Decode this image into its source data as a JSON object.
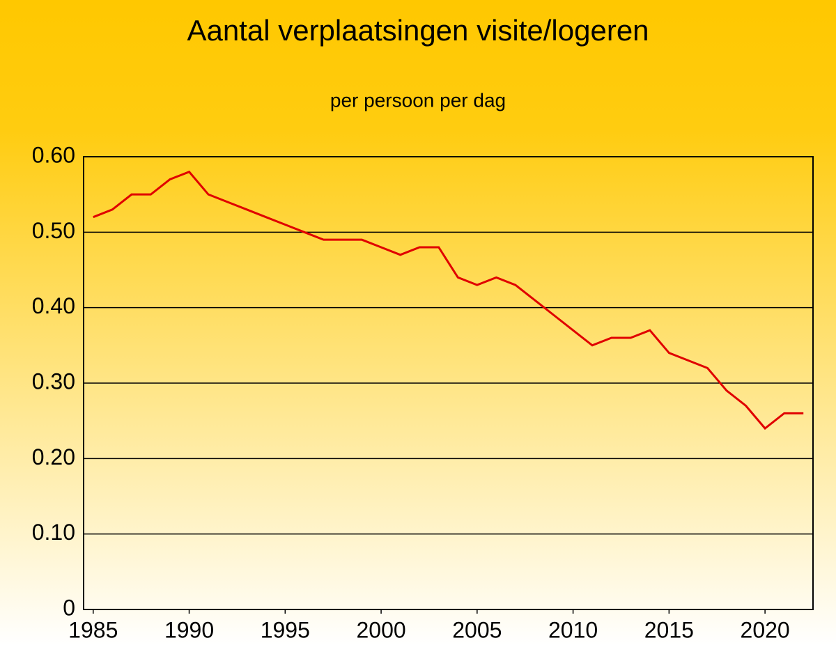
{
  "chart_data": {
    "type": "line",
    "title": "Aantal verplaatsingen visite/logeren",
    "subtitle": "per persoon per dag",
    "x": [
      1985,
      1986,
      1987,
      1988,
      1989,
      1990,
      1991,
      1992,
      1993,
      1994,
      1995,
      1996,
      1997,
      1998,
      1999,
      2000,
      2001,
      2002,
      2003,
      2004,
      2005,
      2006,
      2007,
      2008,
      2009,
      2010,
      2011,
      2012,
      2013,
      2014,
      2015,
      2016,
      2017,
      2018,
      2019,
      2020,
      2021,
      2022
    ],
    "series": [
      {
        "name": "visite/logeren",
        "color": "#e00000",
        "values": [
          0.52,
          0.53,
          0.55,
          0.55,
          0.57,
          0.58,
          0.55,
          0.54,
          0.53,
          0.52,
          0.51,
          0.5,
          0.49,
          0.49,
          0.49,
          0.48,
          0.47,
          0.48,
          0.48,
          0.44,
          0.43,
          0.44,
          0.43,
          0.41,
          0.39,
          0.37,
          0.35,
          0.36,
          0.36,
          0.37,
          0.34,
          0.33,
          0.32,
          0.29,
          0.27,
          0.24,
          0.26,
          0.26
        ]
      }
    ],
    "xlim": [
      1984.5,
      2022.5
    ],
    "xticks": [
      1985,
      1990,
      1995,
      2000,
      2005,
      2010,
      2015,
      2020
    ],
    "ylim": [
      0,
      0.6
    ],
    "yticks": [
      0,
      {
        "value": 0.1,
        "label": "0.10"
      },
      {
        "value": 0.2,
        "label": "0.20"
      },
      {
        "value": 0.3,
        "label": "0.30"
      },
      {
        "value": 0.4,
        "label": "0.40"
      },
      {
        "value": 0.5,
        "label": "0.50"
      },
      {
        "value": 0.6,
        "label": "0.60"
      }
    ],
    "grid": true
  }
}
